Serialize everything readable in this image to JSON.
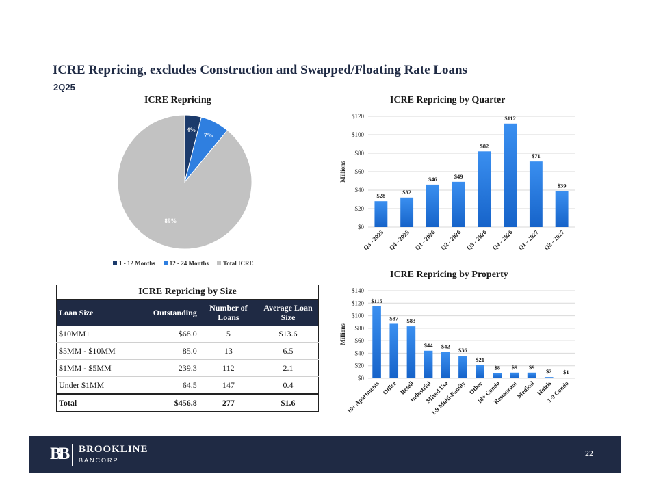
{
  "page": {
    "title": "ICRE Repricing, excludes Construction and Swapped/Floating Rate Loans",
    "subtitle": "2Q25",
    "page_number": "22"
  },
  "footer": {
    "logo_mark": "BB",
    "company": "BROOKLINE",
    "company_sub": "BANCORP"
  },
  "colors": {
    "navy": "#1f2a44",
    "dark_blue": "#1b3a6b",
    "blue": "#2f7fe0",
    "gray": "#c2c2c2",
    "bar_top": "#3a8ff0",
    "bar_bottom": "#1663c9"
  },
  "chart_data": [
    {
      "type": "pie",
      "title": "ICRE Repricing",
      "labels": [
        "1 - 12 Months",
        "12 - 24 Months",
        "Total ICRE"
      ],
      "values": [
        4,
        7,
        89
      ],
      "data_labels": [
        "4%",
        "7%",
        "89%"
      ],
      "legend": "bottom"
    },
    {
      "type": "bar",
      "title": "ICRE Repricing by Quarter",
      "ylabel": "Millions",
      "categories": [
        "Q3 - 2025",
        "Q4 - 2025",
        "Q1 - 2026",
        "Q2 - 2026",
        "Q3 - 2026",
        "Q4 - 2026",
        "Q1 - 2027",
        "Q2 - 2027"
      ],
      "values": [
        28,
        32,
        46,
        49,
        82,
        112,
        71,
        39
      ],
      "data_labels": [
        "$28",
        "$32",
        "$46",
        "$49",
        "$82",
        "$112",
        "$71",
        "$39"
      ],
      "ylim": [
        0,
        120
      ],
      "yticks": [
        "$0",
        "$20",
        "$40",
        "$60",
        "$80",
        "$100",
        "$120"
      ],
      "grid": true
    },
    {
      "type": "bar",
      "title": "ICRE Repricing by Property",
      "ylabel": "Millions",
      "categories": [
        "10+ Apartments",
        "Office",
        "Retail",
        "Industrial",
        "Mixed Use",
        "1-9 Multi-Family",
        "Other",
        "10+ Condo",
        "Restaurant",
        "Medical",
        "Hotels",
        "1-9 Condo"
      ],
      "values": [
        115,
        87,
        83,
        44,
        42,
        36,
        21,
        8,
        9,
        9,
        2,
        1
      ],
      "data_labels": [
        "$115",
        "$87",
        "$83",
        "$44",
        "$42",
        "$36",
        "$21",
        "$8",
        "$9",
        "$9",
        "$2",
        "$1"
      ],
      "ylim": [
        0,
        140
      ],
      "yticks": [
        "$0",
        "$20",
        "$40",
        "$60",
        "$80",
        "$100",
        "$120",
        "$140"
      ],
      "grid": true
    },
    {
      "type": "table",
      "title": "ICRE Repricing by Size",
      "columns": [
        "Loan Size",
        "Outstanding",
        "Number of Loans",
        "Average Loan Size"
      ],
      "rows": [
        [
          "$10MM+",
          "$68.0",
          "5",
          "$13.6"
        ],
        [
          "$5MM - $10MM",
          "85.0",
          "13",
          "6.5"
        ],
        [
          "$1MM - $5MM",
          "239.3",
          "112",
          "2.1"
        ],
        [
          "Under $1MM",
          "64.5",
          "147",
          "0.4"
        ]
      ],
      "total": [
        "Total",
        "$456.8",
        "277",
        "$1.6"
      ]
    }
  ]
}
